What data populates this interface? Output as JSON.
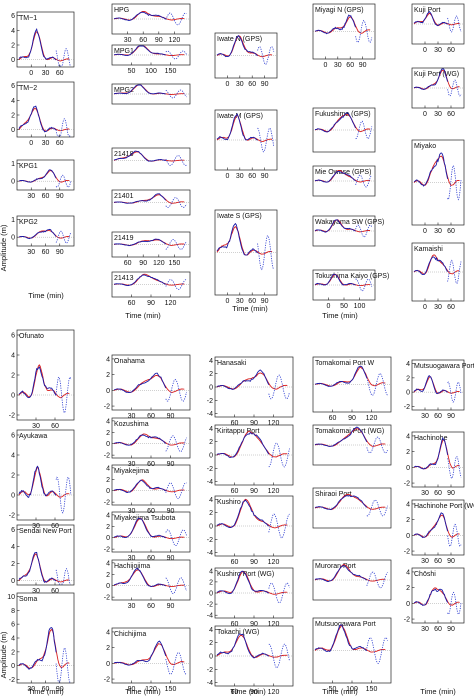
{
  "figure": {
    "ylabel_top": "Amplitude (m)",
    "ylabel_bottom": "Amplitude (m)",
    "xlabel": "Time (min)"
  },
  "legend_colors": {
    "observed": "#1a1aa8",
    "simulated": "#d81f1f",
    "dotted": "#2a3ad0"
  },
  "chart_data": [
    {
      "title": "TM−1",
      "type": "line",
      "yticks": [
        0,
        2,
        4,
        6
      ],
      "xticks": [
        0,
        30,
        60
      ],
      "ylim": [
        -1,
        6.5
      ]
    },
    {
      "title": "TM−2",
      "type": "line",
      "yticks": [
        0,
        2,
        4,
        6
      ],
      "xticks": [
        0,
        30,
        60
      ],
      "ylim": [
        -1,
        6.5
      ]
    },
    {
      "title": "KPG1",
      "type": "line",
      "yticks": [
        0,
        1
      ],
      "xticks": [
        30,
        60,
        90
      ],
      "ylim": [
        -0.5,
        1.2
      ]
    },
    {
      "title": "KPG2",
      "type": "line",
      "yticks": [
        0,
        1
      ],
      "xticks": [
        30,
        60,
        90
      ],
      "ylim": [
        -0.5,
        1.2
      ]
    },
    {
      "title": "HPG",
      "type": "line",
      "xticks": [
        30,
        60,
        90,
        120
      ]
    },
    {
      "title": "MPG1",
      "type": "line",
      "xticks": [
        50,
        100,
        150
      ]
    },
    {
      "title": "MPG2",
      "type": "line",
      "xticks": []
    },
    {
      "title": "21418",
      "type": "line",
      "xticks": []
    },
    {
      "title": "21401",
      "type": "line",
      "xticks": []
    },
    {
      "title": "21419",
      "type": "line",
      "xticks": [
        60,
        90,
        120,
        150
      ]
    },
    {
      "title": "21413",
      "type": "line",
      "xticks": [
        60,
        90,
        120
      ]
    },
    {
      "title": "Iwate N (GPS)",
      "type": "line",
      "xticks": [
        0,
        30,
        60,
        90
      ]
    },
    {
      "title": "Iwate M (GPS)",
      "type": "line",
      "xticks": [
        0,
        30,
        60,
        90
      ]
    },
    {
      "title": "Iwate S (GPS)",
      "type": "line",
      "xticks": [
        0,
        30,
        60,
        90
      ]
    },
    {
      "title": "Miyagi N (GPS)",
      "type": "line",
      "xticks": [
        0,
        30,
        60,
        90
      ]
    },
    {
      "title": "Fukushima (GPS)",
      "type": "line",
      "xticks": []
    },
    {
      "title": "Mie Owase (GPS)",
      "type": "line",
      "xticks": []
    },
    {
      "title": "Wakayama SW (GPS)",
      "type": "line",
      "xticks": []
    },
    {
      "title": "Tokushima Kaiyo (GPS)",
      "type": "line",
      "xticks": [
        0,
        50,
        100
      ]
    },
    {
      "title": "Kuji Port",
      "type": "line",
      "xticks": [
        0,
        30,
        60
      ]
    },
    {
      "title": "Kuji Port (WG)",
      "type": "line",
      "xticks": [
        0,
        30,
        60
      ]
    },
    {
      "title": "Miyako",
      "type": "line",
      "xticks": [
        0,
        30,
        60
      ]
    },
    {
      "title": "Kamaishi",
      "type": "line",
      "xticks": [
        0,
        30,
        60
      ]
    },
    {
      "title": "Ofunato",
      "type": "line",
      "yticks": [
        -2,
        0,
        2,
        4,
        6
      ],
      "xticks": [
        30,
        60
      ],
      "ylim": [
        -2.5,
        6.5
      ]
    },
    {
      "title": "Ayukawa",
      "type": "line",
      "yticks": [
        -2,
        0,
        2,
        4,
        6
      ],
      "xticks": [
        30,
        60
      ],
      "ylim": [
        -2.5,
        6.5
      ]
    },
    {
      "title": "Sendai New Port",
      "type": "line",
      "yticks": [
        0,
        2,
        4,
        6
      ],
      "xticks": [
        30,
        60
      ],
      "ylim": [
        -0.5,
        6.5
      ]
    },
    {
      "title": "Soma",
      "type": "line",
      "yticks": [
        -2,
        0,
        2,
        4,
        6,
        8,
        10
      ],
      "xticks": [
        30,
        60,
        90
      ],
      "ylim": [
        -2.5,
        10.5
      ]
    },
    {
      "title": "Onahama",
      "type": "line",
      "yticks": [
        -2,
        0,
        2,
        4
      ],
      "xticks": [
        30,
        60,
        90
      ],
      "ylim": [
        -2.5,
        4.5
      ]
    },
    {
      "title": "Kozushima",
      "type": "line",
      "yticks": [
        -2,
        0,
        2,
        4
      ],
      "xticks": [
        30,
        60,
        90
      ],
      "ylim": [
        -2.5,
        4.5
      ]
    },
    {
      "title": "Miyakejima",
      "type": "line",
      "yticks": [
        -2,
        0,
        2,
        4
      ],
      "xticks": [
        30,
        60,
        90
      ],
      "ylim": [
        -2.5,
        4.5
      ]
    },
    {
      "title": "Miyakejima Tsubota",
      "type": "line",
      "yticks": [
        -2,
        0,
        2,
        4
      ],
      "xticks": [
        30,
        60,
        90
      ],
      "ylim": [
        -2.5,
        4.5
      ]
    },
    {
      "title": "Hachijojima",
      "type": "line",
      "yticks": [
        -2,
        0,
        2,
        4
      ],
      "xticks": [
        30,
        60,
        90
      ],
      "ylim": [
        -2.5,
        4.5
      ]
    },
    {
      "title": "Chichijima",
      "type": "line",
      "yticks": [
        -2,
        0,
        2,
        4
      ],
      "xticks": [
        90,
        120,
        150
      ],
      "ylim": [
        -2.5,
        4.5
      ]
    },
    {
      "title": "Hanasaki",
      "type": "line",
      "yticks": [
        -4,
        -2,
        0,
        2,
        4
      ],
      "xticks": [
        60,
        90,
        120
      ],
      "ylim": [
        -4.5,
        4.5
      ]
    },
    {
      "title": "Kiritappu Port",
      "type": "line",
      "yticks": [
        -4,
        -2,
        0,
        2,
        4
      ],
      "xticks": [
        60,
        90,
        120
      ],
      "ylim": [
        -4.5,
        4.5
      ]
    },
    {
      "title": "Kushiro",
      "type": "line",
      "yticks": [
        -4,
        -2,
        0,
        2,
        4
      ],
      "xticks": [
        60,
        90,
        120
      ],
      "ylim": [
        -4.5,
        4.5
      ]
    },
    {
      "title": "Kushiro Port (WG)",
      "type": "line",
      "yticks": [
        -4,
        -2,
        0,
        2,
        4
      ],
      "xticks": [
        60,
        90,
        120
      ],
      "ylim": [
        -4.5,
        4.5
      ]
    },
    {
      "title": "Tokachi (WG)",
      "type": "line",
      "yticks": [
        -4,
        -2,
        0,
        2,
        4
      ],
      "xticks": [
        60,
        90,
        120
      ],
      "ylim": [
        -4.5,
        4.5
      ]
    },
    {
      "title": "Tomakomai Port W",
      "type": "line",
      "xticks": [
        60,
        90,
        120
      ]
    },
    {
      "title": "Tomakomai Port (WG)",
      "type": "line",
      "xticks": []
    },
    {
      "title": "Shiraoi Port",
      "type": "line",
      "xticks": []
    },
    {
      "title": "Muroran Port",
      "type": "line",
      "xticks": []
    },
    {
      "title": "Mutsuogawara Port",
      "type": "line",
      "xticks": [
        50,
        100,
        150
      ]
    },
    {
      "title": "Mutsuogawara Port (WG)",
      "type": "line",
      "yticks": [
        -2,
        0,
        2,
        4
      ],
      "xticks": [
        30,
        60,
        90
      ],
      "ylim": [
        -2.5,
        4.5
      ]
    },
    {
      "title": "Hachinohe",
      "type": "line",
      "yticks": [
        -2,
        0,
        2,
        4
      ],
      "xticks": [
        30,
        60,
        90
      ],
      "ylim": [
        -2.5,
        4.5
      ]
    },
    {
      "title": "Hachinohe Port (WG)",
      "type": "line",
      "yticks": [
        -2,
        0,
        2,
        4
      ],
      "xticks": [
        30,
        60,
        90
      ],
      "ylim": [
        -2.5,
        4.5
      ]
    },
    {
      "title": "Chōshi",
      "type": "line",
      "yticks": [
        -2,
        0,
        2,
        4
      ],
      "xticks": [
        30,
        60,
        90
      ],
      "ylim": [
        -2.5,
        4.5
      ]
    }
  ]
}
